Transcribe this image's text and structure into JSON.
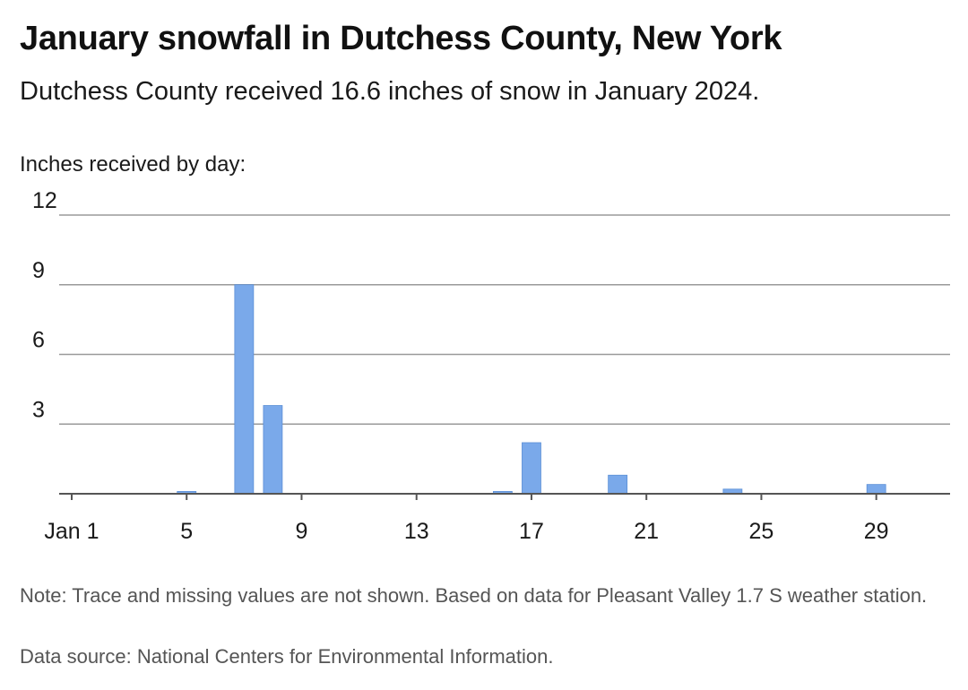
{
  "title": "January snowfall in Dutchess County, New York",
  "subtitle": "Dutchess County received 16.6 inches of snow in January 2024.",
  "unit_label": "Inches received by day:",
  "note": "Note: Trace and missing values are not shown. Based on data for Pleasant Valley 1.7 S weather station.",
  "source": "Data source: National Centers for Environmental Information.",
  "colors": {
    "bar": "#7aa9ea",
    "bar_stroke": "#5b8fd6",
    "grid": "#9a9a9a",
    "axis": "#555555"
  },
  "chart_data": {
    "type": "bar",
    "title": "January snowfall in Dutchess County, New York",
    "subtitle": "Dutchess County received 16.6 inches of snow in January 2024.",
    "ylabel": "Inches received by day:",
    "xlabel": "",
    "ylim": [
      0,
      12
    ],
    "y_ticks": [
      3,
      6,
      9,
      12
    ],
    "y_tick_labels": [
      "3",
      "6",
      "9",
      "12"
    ],
    "x_ticks": [
      1,
      5,
      9,
      13,
      17,
      21,
      25,
      29
    ],
    "x_tick_labels": [
      "Jan 1",
      "5",
      "9",
      "13",
      "17",
      "21",
      "25",
      "29"
    ],
    "x_range": [
      1,
      31
    ],
    "grid": true,
    "legend": "none",
    "x": [
      5,
      7,
      8,
      16,
      17,
      20,
      24,
      29
    ],
    "values": [
      0.1,
      9.0,
      3.8,
      0.1,
      2.2,
      0.8,
      0.2,
      0.4
    ]
  }
}
